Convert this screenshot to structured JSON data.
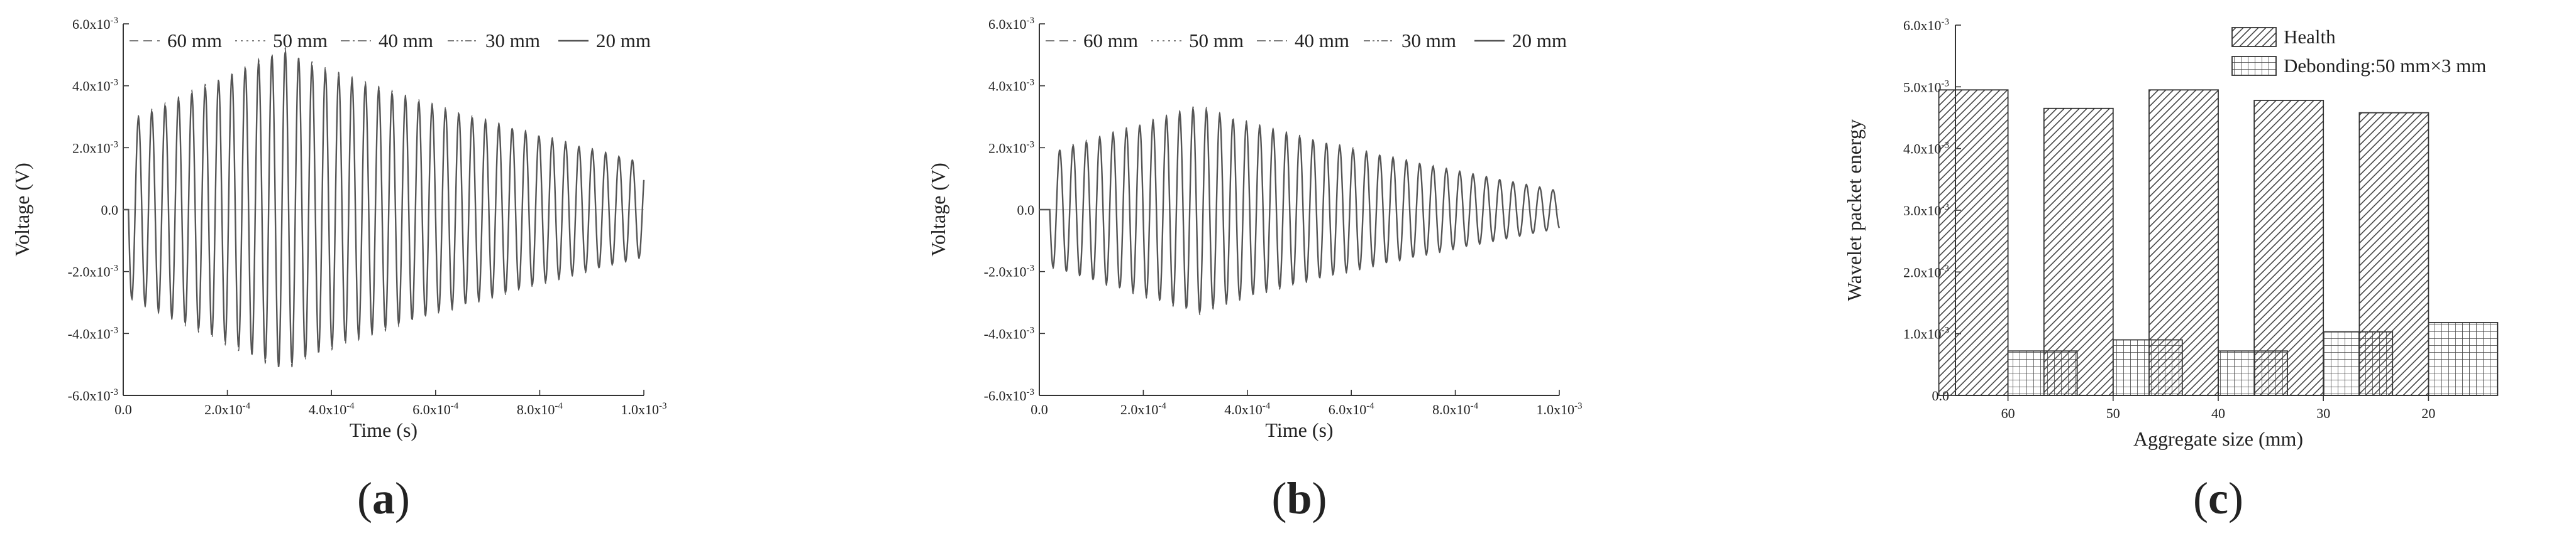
{
  "chart_data": [
    {
      "type": "line",
      "panel_label": "(a)",
      "panel_letter": "a",
      "xlabel": "Time (s)",
      "ylabel": "Voltage (V)",
      "xlim": [
        0,
        0.001
      ],
      "ylim": [
        -0.006,
        0.006
      ],
      "x_tick_labels": [
        "0.0",
        "2.0x10",
        "4.0x10",
        "6.0x10",
        "8.0x10",
        "1.0x10"
      ],
      "x_tick_exponents": [
        "",
        "-4",
        "-4",
        "-4",
        "-4",
        "-3"
      ],
      "x_ticks": [
        0,
        0.0002,
        0.0004,
        0.0006,
        0.0008,
        0.001
      ],
      "y_tick_labels": [
        "6.0x10",
        "4.0x10",
        "2.0x10",
        "0.0",
        "-2.0x10",
        "-4.0x10",
        "-6.0x10"
      ],
      "y_tick_exponents": [
        "-3",
        "-3",
        "-3",
        "",
        "-3",
        "-3",
        "-3"
      ],
      "y_ticks": [
        0.006,
        0.004,
        0.002,
        0,
        -0.002,
        -0.004,
        -0.006
      ],
      "legend": [
        "60 mm",
        "50 mm",
        "40 mm",
        "30 mm",
        "20 mm"
      ],
      "signal": {
        "frequency_hz": 39000,
        "onset_s": 1e-05,
        "peak_amplitude": 0.0051,
        "peak_time_s": 0.00031,
        "end_amplitude": 0.0015
      }
    },
    {
      "type": "line",
      "panel_label": "(b)",
      "panel_letter": "b",
      "xlabel": "Time (s)",
      "ylabel": "Voltage (V)",
      "xlim": [
        0,
        0.001
      ],
      "ylim": [
        -0.006,
        0.006
      ],
      "x_tick_labels": [
        "0.0",
        "2.0x10",
        "4.0x10",
        "6.0x10",
        "8.0x10",
        "1.0x10"
      ],
      "x_tick_exponents": [
        "",
        "-4",
        "-4",
        "-4",
        "-4",
        "-3"
      ],
      "x_ticks": [
        0,
        0.0002,
        0.0004,
        0.0006,
        0.0008,
        0.001
      ],
      "y_tick_labels": [
        "6.0x10",
        "4.0x10",
        "2.0x10",
        "0.0",
        "-2.0x10",
        "-4.0x10",
        "-6.0x10"
      ],
      "y_tick_exponents": [
        "-3",
        "-3",
        "-3",
        "",
        "-3",
        "-3",
        "-3"
      ],
      "y_ticks": [
        0.006,
        0.004,
        0.002,
        0,
        -0.002,
        -0.004,
        -0.006
      ],
      "legend": [
        "60 mm",
        "50 mm",
        "40 mm",
        "30 mm",
        "20 mm"
      ],
      "signal": {
        "frequency_hz": 39000,
        "onset_s": 2e-05,
        "peak_amplitude": 0.0033,
        "peak_time_s": 0.00031,
        "end_amplitude": 0.0006
      }
    },
    {
      "type": "bar",
      "panel_label": "(c)",
      "panel_letter": "c",
      "xlabel": "Aggregate size (mm)",
      "ylabel": "Wavelet packet energy",
      "categories": [
        "60",
        "50",
        "40",
        "30",
        "20"
      ],
      "ylim": [
        0,
        0.006
      ],
      "y_tick_labels": [
        "6.0x10",
        "5.0x10",
        "4.0x10",
        "3.0x10",
        "2.0x10",
        "1.0x10",
        "0.0"
      ],
      "y_tick_exponents": [
        "-3",
        "-3",
        "-3",
        "-3",
        "-3",
        "-3",
        ""
      ],
      "y_ticks": [
        0.006,
        0.005,
        0.004,
        0.003,
        0.002,
        0.001,
        0
      ],
      "series": [
        {
          "name": "Health",
          "values": [
            0.00495,
            0.00465,
            0.00495,
            0.00478,
            0.00458
          ]
        },
        {
          "name": "Debonding:50 mm×3 mm",
          "values": [
            0.00072,
            0.0009,
            0.00072,
            0.00103,
            0.00118
          ]
        }
      ]
    }
  ],
  "colors": {
    "wave": "#555555",
    "axis": "#333333",
    "text": "#222222"
  }
}
